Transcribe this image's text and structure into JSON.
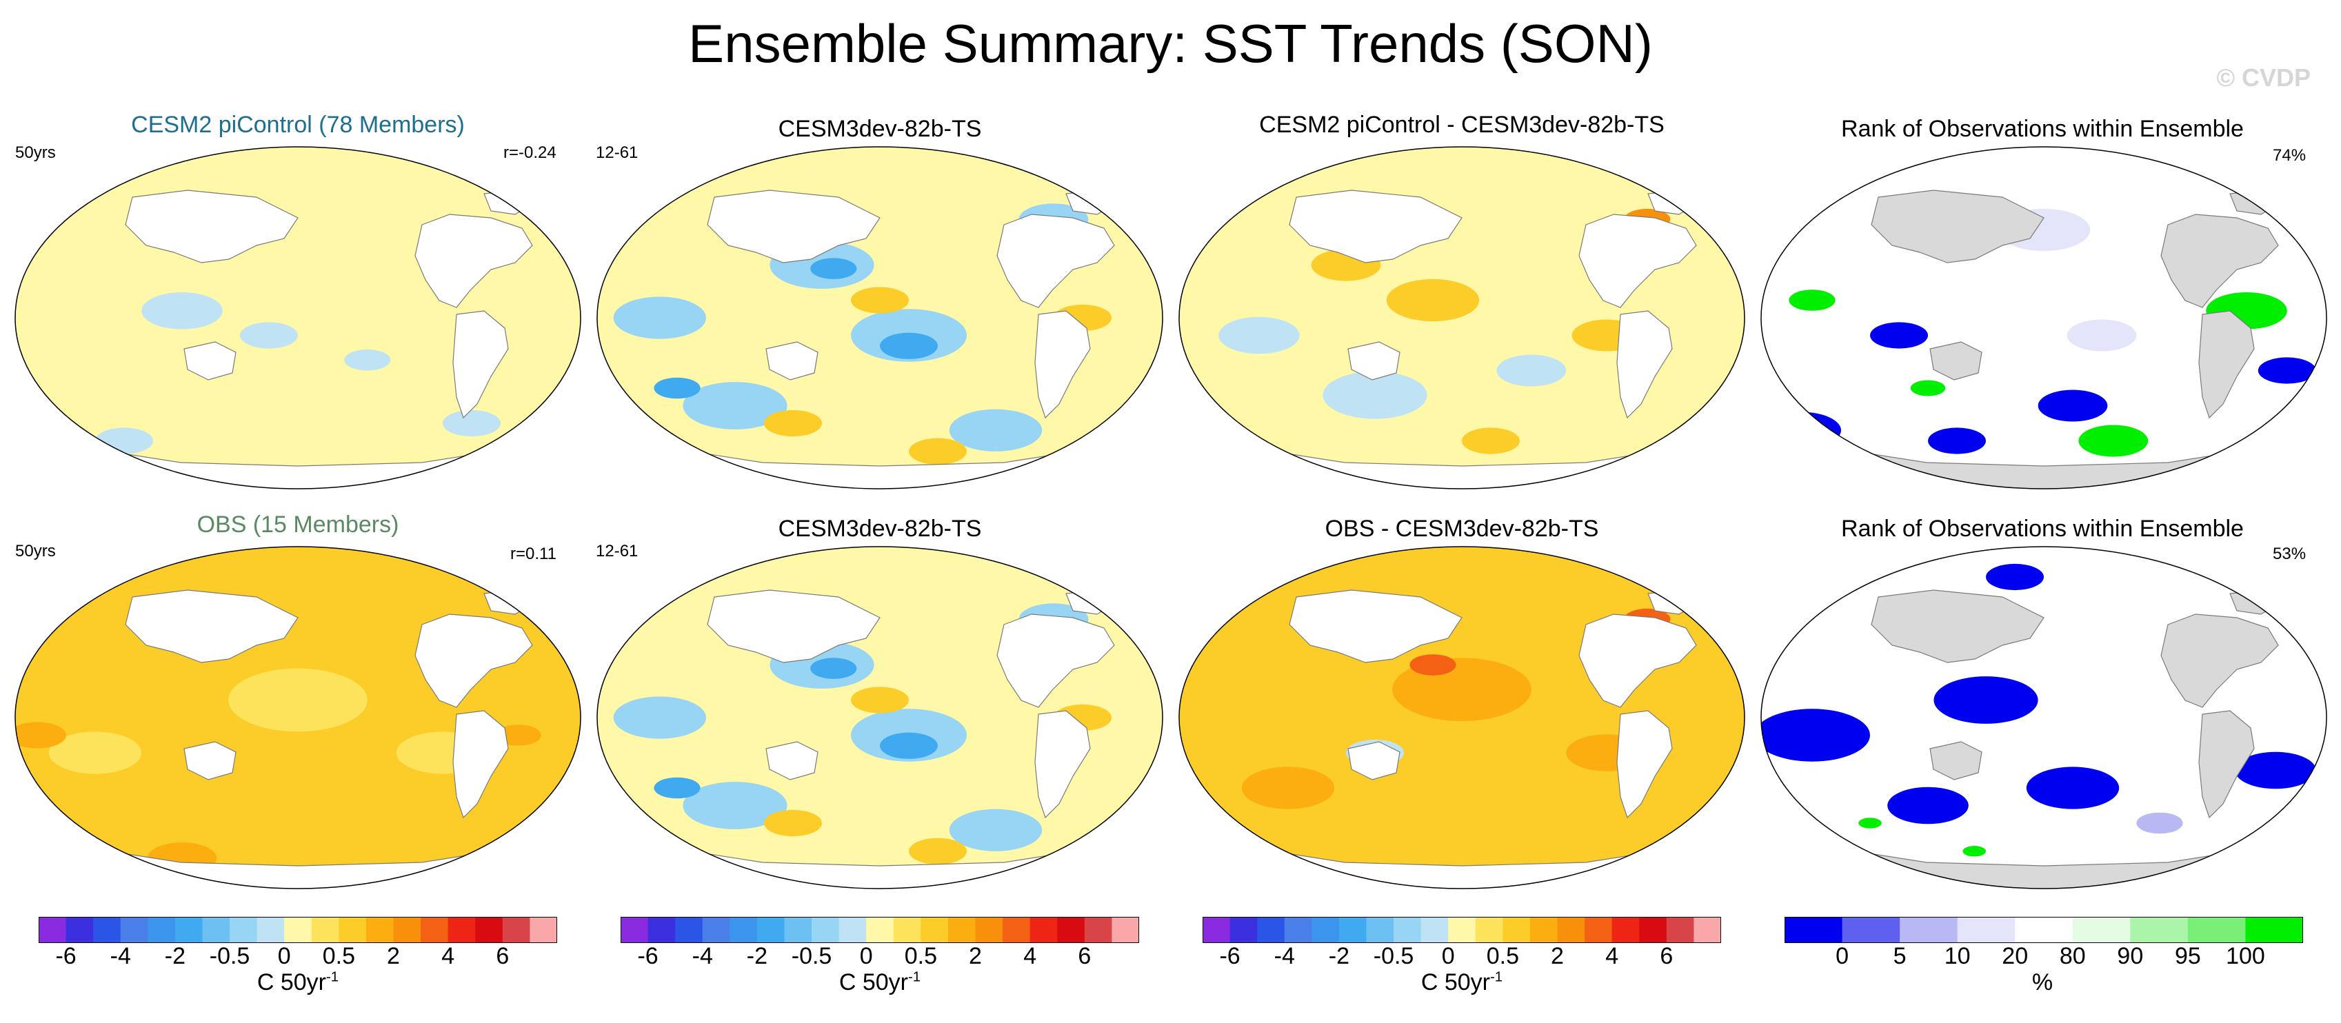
{
  "title": "Ensemble Summary: SST Trends (SON)",
  "watermark": "© CVDP",
  "colors": {
    "land": "#ffffff",
    "land_gray": "#d9d9d9",
    "coast": "#7a7a7a",
    "title_blue": "#1e6e8e",
    "title_green": "#5a8a62"
  },
  "chart_data": [
    {
      "type": "heatmap",
      "id": "a",
      "title": "CESM2 piControl (78 Members)",
      "title_color": "title_blue",
      "left_label": "50yrs",
      "right_label": "r=-0.24",
      "field": "sst_trend",
      "pattern": "weak",
      "colorbar": "trend"
    },
    {
      "type": "heatmap",
      "id": "b",
      "title": "CESM3dev-82b-TS",
      "left_label": "12-61",
      "right_label": "",
      "field": "sst_trend",
      "pattern": "model",
      "colorbar": "trend"
    },
    {
      "type": "heatmap",
      "id": "c",
      "title": "CESM2 piControl - CESM3dev-82b-TS",
      "left_label": "",
      "right_label": "",
      "field": "sst_trend_diff",
      "pattern": "diff1",
      "colorbar": "trend"
    },
    {
      "type": "heatmap",
      "id": "d",
      "title": "Rank of Observations within Ensemble",
      "left_label": "",
      "right_label": "74%",
      "field": "rank",
      "pattern": "rank1",
      "colorbar": "rank"
    },
    {
      "type": "heatmap",
      "id": "e",
      "title": "OBS (15 Members)",
      "title_color": "title_green",
      "left_label": "50yrs",
      "right_label": "r=0.11",
      "field": "sst_trend",
      "pattern": "obs",
      "colorbar": "trend"
    },
    {
      "type": "heatmap",
      "id": "f",
      "title": "CESM3dev-82b-TS",
      "left_label": "12-61",
      "right_label": "",
      "field": "sst_trend",
      "pattern": "model2",
      "colorbar": "trend"
    },
    {
      "type": "heatmap",
      "id": "g",
      "title": "OBS - CESM3dev-82b-TS",
      "left_label": "",
      "right_label": "",
      "field": "sst_trend_diff",
      "pattern": "diff2",
      "colorbar": "trend"
    },
    {
      "type": "heatmap",
      "id": "h",
      "title": "Rank of Observations within Ensemble",
      "left_label": "",
      "right_label": "53%",
      "field": "rank",
      "pattern": "rank2",
      "colorbar": "rank"
    }
  ],
  "colorbars": {
    "trend": {
      "unit_label": "C 50yr",
      "unit_exp": "-1",
      "tick_labels": [
        "-6",
        "-4",
        "-2",
        "-0.5",
        "0",
        "0.5",
        "2",
        "4",
        "6"
      ],
      "tick_box_index": [
        1,
        3,
        5,
        7,
        9,
        11,
        13,
        15,
        17
      ],
      "colors": [
        "#8a2be2",
        "#3c2fe0",
        "#2a55e6",
        "#4a7ee8",
        "#3c95ec",
        "#40aaf0",
        "#6cc0f2",
        "#98d4f4",
        "#bfe3f4",
        "#fff8a8",
        "#fde35c",
        "#fccc28",
        "#fcae10",
        "#f8900c",
        "#f46014",
        "#ee2414",
        "#d80c10",
        "#d84448",
        "#f8a8a8"
      ]
    },
    "rank": {
      "unit_label": "%",
      "tick_labels": [
        "0",
        "5",
        "10",
        "20",
        "80",
        "90",
        "95",
        "100"
      ],
      "edges": [
        0,
        5,
        10,
        20,
        80,
        90,
        95,
        100
      ],
      "colors": [
        "#0000f0",
        "#6060f0",
        "#b8b8f4",
        "#e4e4fa",
        "#ffffff",
        "#e4fbe4",
        "#aaf5aa",
        "#78f078",
        "#00ee00"
      ]
    }
  }
}
